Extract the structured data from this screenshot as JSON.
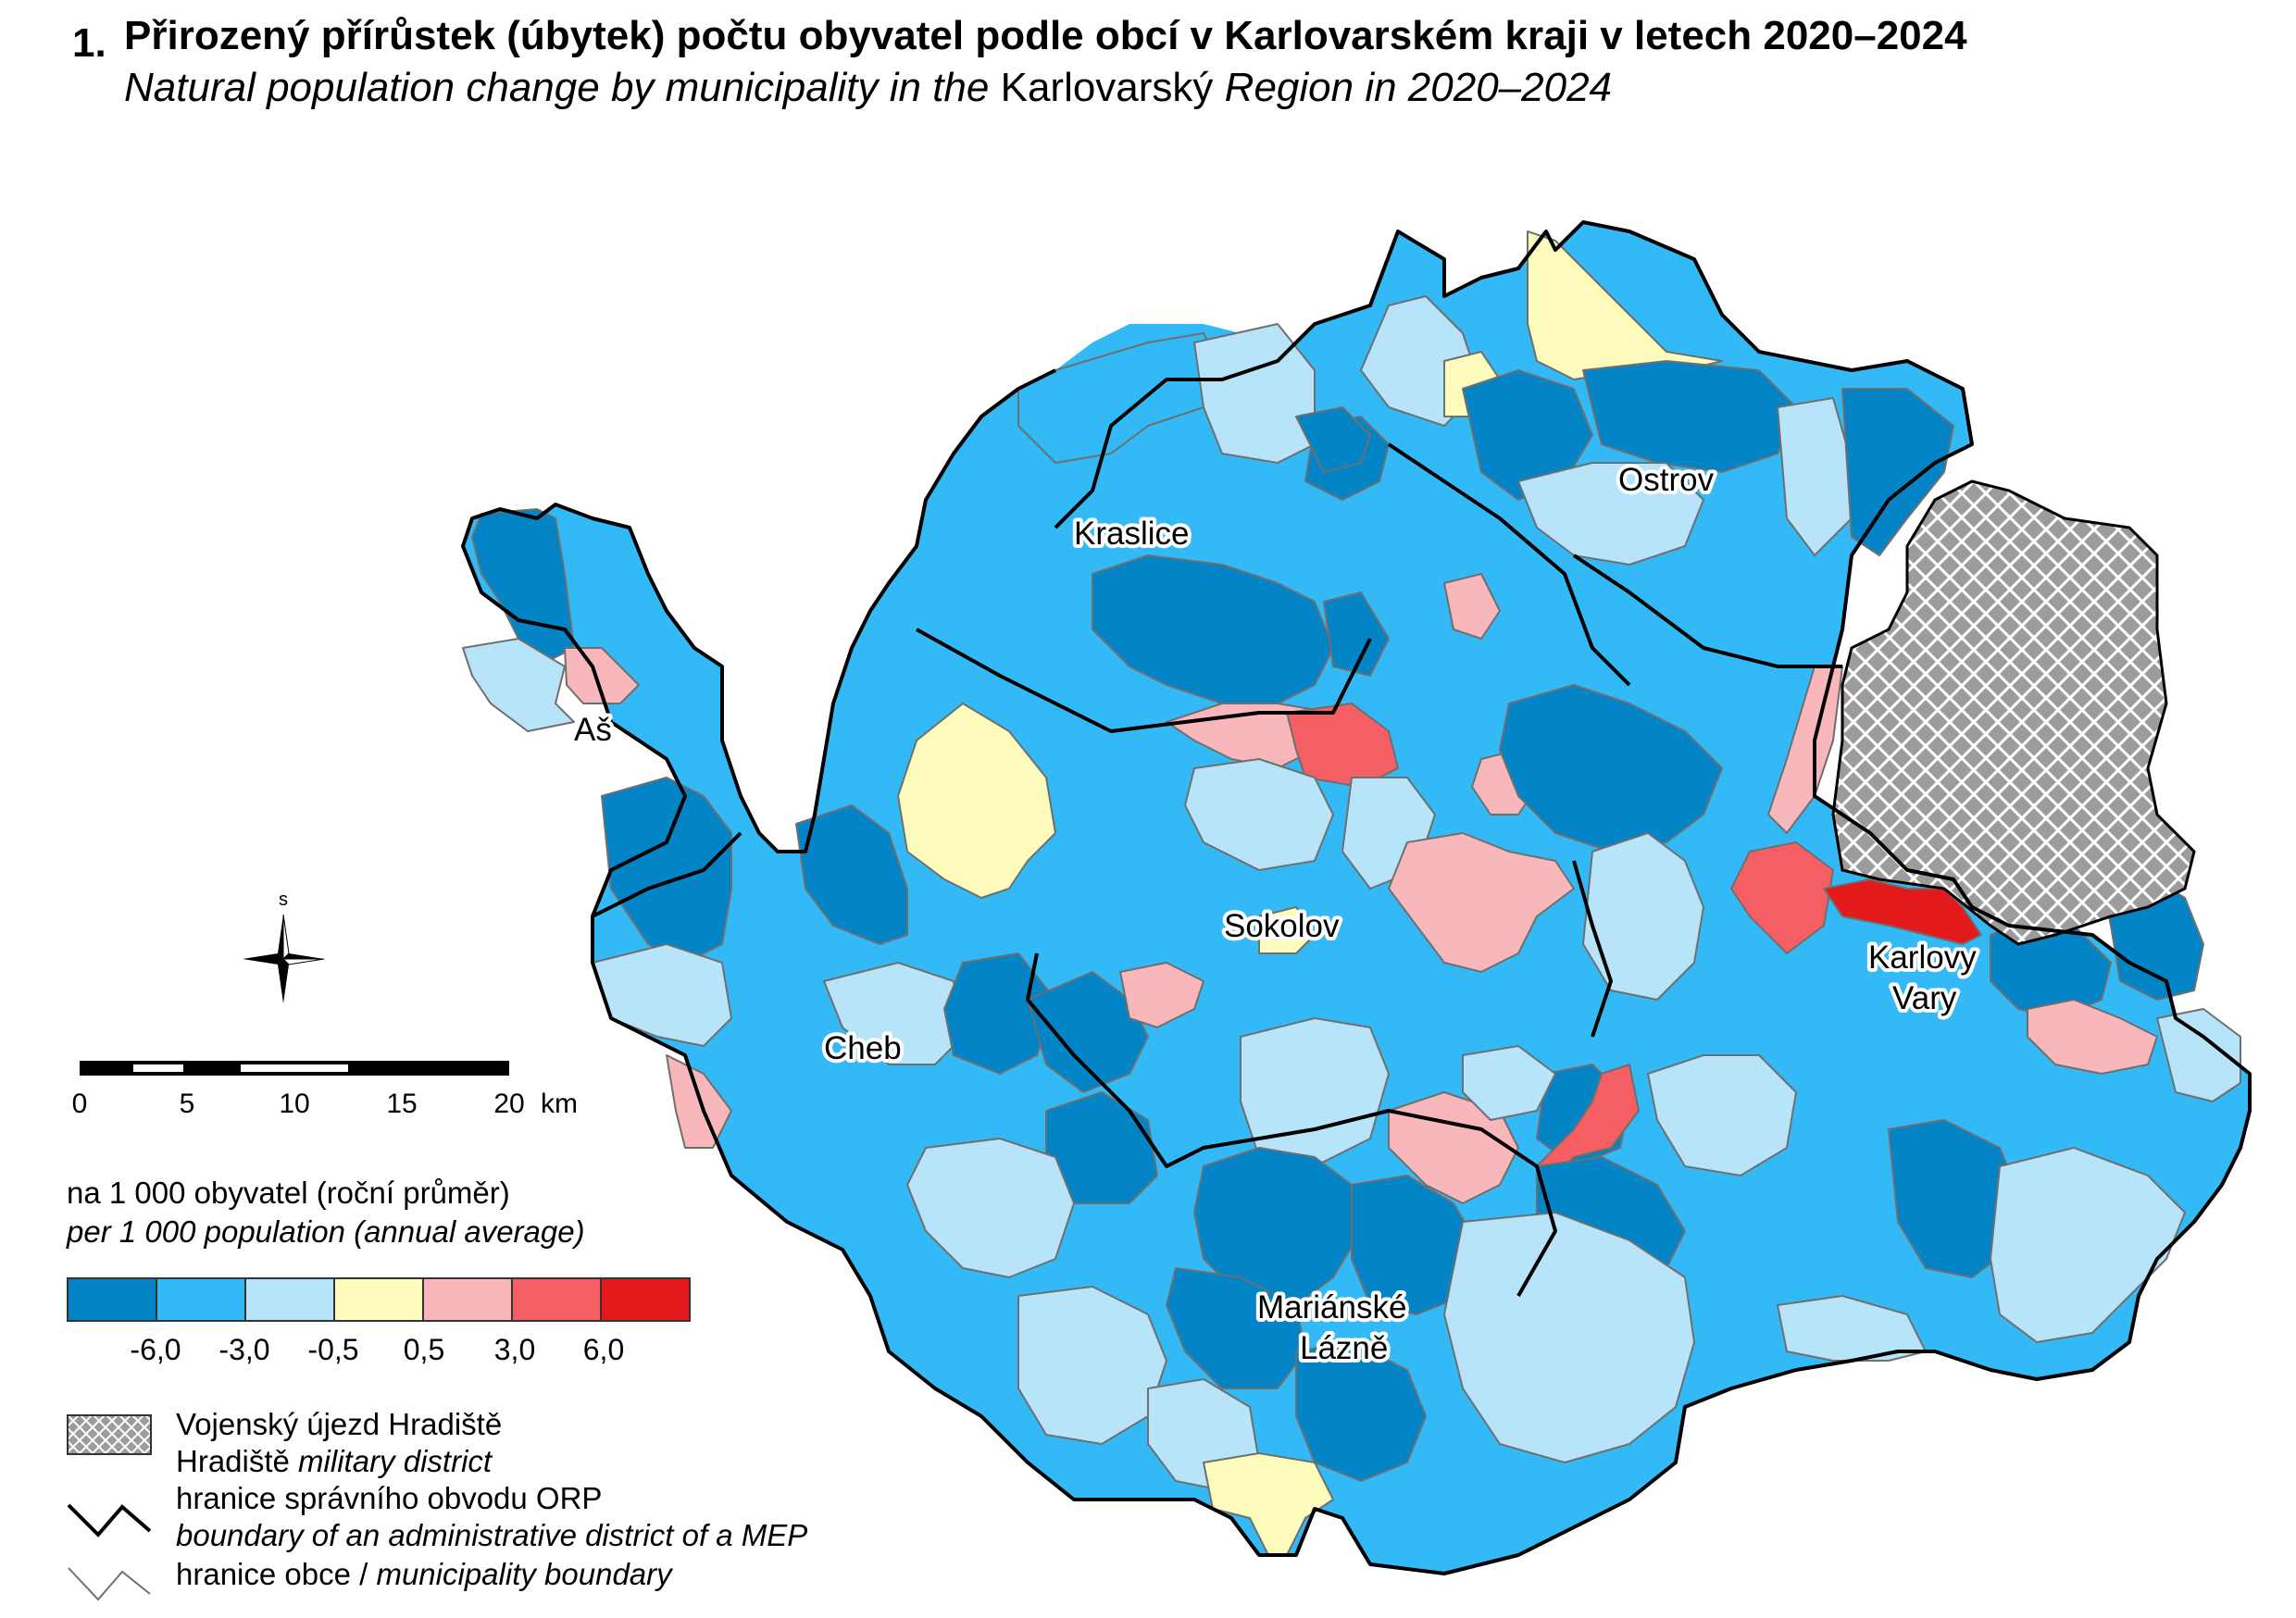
{
  "title": {
    "number": "1.",
    "cz": "Přirozený přírůstek (úbytek) počtu obyvatel podle obcí v Karlovarském kraji v letech 2020–2024",
    "en_part1": "Natural population change by municipality in the ",
    "en_part2": "Karlovarský",
    "en_part3": " Region in 2020–2024"
  },
  "cities": [
    {
      "name": "Kraslice"
    },
    {
      "name": "Ostrov"
    },
    {
      "name": "Aš"
    },
    {
      "name": "Sokolov"
    },
    {
      "name": "Cheb"
    },
    {
      "name": "Karlovy"
    },
    {
      "name": "Vary"
    },
    {
      "name": "Mariánské"
    },
    {
      "name": "Lázně"
    }
  ],
  "compass": {
    "north_label": "s"
  },
  "scale": {
    "labels": [
      "0",
      "5",
      "10",
      "15",
      "20"
    ],
    "unit": "km"
  },
  "legend": {
    "unit_cz": "na 1 000 obyvatel (roční průměr)",
    "unit_en": "per 1 000 population (annual average)",
    "classes": [
      {
        "color": "#0284c7"
      },
      {
        "color": "#33b9f5"
      },
      {
        "color": "#b8e4fa"
      },
      {
        "color": "#fdfcbd"
      },
      {
        "color": "#f8b8bb"
      },
      {
        "color": "#f55e63"
      },
      {
        "color": "#e3191c"
      }
    ],
    "breaks": [
      "-6,0",
      "-3,0",
      "-0,5",
      "0,5",
      "3,0",
      "6,0"
    ],
    "military_cz": "Vojenský újezd Hradiště",
    "military_en_name": "Hradiště",
    "military_en_rest": " military district",
    "orp_cz": "hranice správního obvodu ORP",
    "orp_en": "boundary of an administrative district of a MEP",
    "municipality_cz": "hranice obce / ",
    "municipality_en": "municipality boundary"
  }
}
